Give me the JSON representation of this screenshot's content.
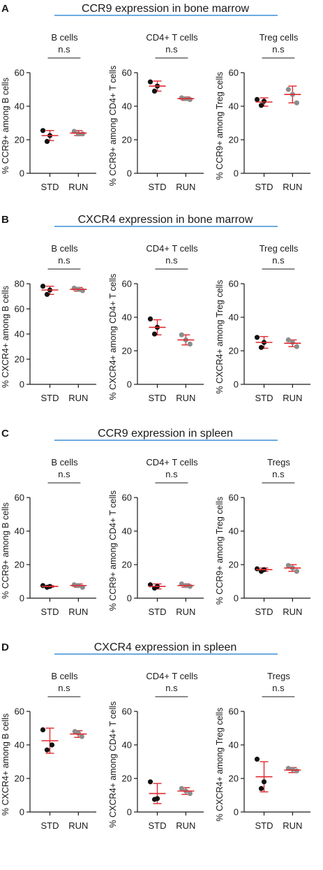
{
  "chart_data": [
    {
      "panel": "A",
      "title": "CCR9 expression in bone marrow",
      "type": "scatter",
      "subplots": [
        {
          "title": "B cells",
          "ylabel": "% CCR9+ among B cells",
          "ylim": [
            0,
            60
          ],
          "yticks": [
            "0",
            "20",
            "40",
            "60"
          ],
          "categories": [
            "STD",
            "RUN"
          ],
          "significance": "n.s",
          "groups": [
            {
              "name": "STD",
              "points": [
                25.5,
                22.5,
                19.0
              ],
              "mean": 22.5,
              "sd_low": 19.5,
              "sd_high": 25.5
            },
            {
              "name": "RUN",
              "points": [
                25.0,
                23.5,
                23.5
              ],
              "mean": 24.0,
              "sd_low": 22.5,
              "sd_high": 25.5
            }
          ]
        },
        {
          "title": "CD4+ T cells",
          "ylabel": "% CCR9+ among CD4+ T cells",
          "ylim": [
            0,
            60
          ],
          "yticks": [
            "0",
            "20",
            "40",
            "60"
          ],
          "categories": [
            "STD",
            "RUN"
          ],
          "significance": "n.s",
          "groups": [
            {
              "name": "STD",
              "points": [
                54.5,
                52.0,
                49.0
              ],
              "mean": 52.0,
              "sd_low": 49.0,
              "sd_high": 55.0
            },
            {
              "name": "RUN",
              "points": [
                45.0,
                44.5,
                44.0
              ],
              "mean": 44.5,
              "sd_low": 43.5,
              "sd_high": 45.5
            }
          ]
        },
        {
          "title": "Treg cells",
          "ylabel": "% CCR9+ among Treg cells",
          "ylim": [
            0,
            60
          ],
          "yticks": [
            "0",
            "20",
            "40",
            "60"
          ],
          "categories": [
            "STD",
            "RUN"
          ],
          "significance": "n.s",
          "groups": [
            {
              "name": "STD",
              "points": [
                44.0,
                43.0,
                40.5
              ],
              "mean": 42.5,
              "sd_low": 40.0,
              "sd_high": 45.0
            },
            {
              "name": "RUN",
              "points": [
                50.0,
                47.0,
                42.0
              ],
              "mean": 47.0,
              "sd_low": 42.0,
              "sd_high": 52.0
            }
          ]
        }
      ]
    },
    {
      "panel": "B",
      "title": "CXCR4 expression in bone marrow",
      "type": "scatter",
      "subplots": [
        {
          "title": "B cells",
          "ylabel": "% CXCR4+ among B cells",
          "ylim": [
            0,
            80
          ],
          "yticks": [
            "0",
            "20",
            "40",
            "60",
            "80"
          ],
          "categories": [
            "STD",
            "RUN"
          ],
          "significance": "n.s",
          "groups": [
            {
              "name": "STD",
              "points": [
                78.0,
                75.0,
                71.5
              ],
              "mean": 75.0,
              "sd_low": 71.5,
              "sd_high": 78.0
            },
            {
              "name": "RUN",
              "points": [
                76.5,
                75.5,
                74.5
              ],
              "mean": 75.5,
              "sd_low": 74.0,
              "sd_high": 77.0
            }
          ]
        },
        {
          "title": "CD4+ T cells",
          "ylabel": "% CXCR4+ among CD4+ T cells",
          "ylim": [
            0,
            60
          ],
          "yticks": [
            "0",
            "20",
            "40",
            "60"
          ],
          "categories": [
            "STD",
            "RUN"
          ],
          "significance": "n.s",
          "groups": [
            {
              "name": "STD",
              "points": [
                39.0,
                34.0,
                30.0
              ],
              "mean": 34.0,
              "sd_low": 29.5,
              "sd_high": 38.5
            },
            {
              "name": "RUN",
              "points": [
                29.5,
                26.5,
                24.0
              ],
              "mean": 26.5,
              "sd_low": 23.5,
              "sd_high": 29.5
            }
          ]
        },
        {
          "title": "Treg cells",
          "ylabel": "% CXCR4+ among Treg cells",
          "ylim": [
            0,
            60
          ],
          "yticks": [
            "0",
            "20",
            "40",
            "60"
          ],
          "categories": [
            "STD",
            "RUN"
          ],
          "significance": "n.s",
          "groups": [
            {
              "name": "STD",
              "points": [
                28.0,
                25.0,
                22.0
              ],
              "mean": 25.0,
              "sd_low": 21.5,
              "sd_high": 28.5
            },
            {
              "name": "RUN",
              "points": [
                26.5,
                25.0,
                22.5
              ],
              "mean": 24.5,
              "sd_low": 22.5,
              "sd_high": 26.5
            }
          ]
        }
      ]
    },
    {
      "panel": "C",
      "title": "CCR9 expression in spleen",
      "type": "scatter",
      "subplots": [
        {
          "title": "B cells",
          "ylabel": "% CCR9+ among B cells",
          "ylim": [
            0,
            60
          ],
          "yticks": [
            "0",
            "20",
            "40",
            "60"
          ],
          "categories": [
            "STD",
            "RUN"
          ],
          "significance": "n.s",
          "groups": [
            {
              "name": "STD",
              "points": [
                7.5,
                7.0,
                6.5
              ],
              "mean": 7.0,
              "sd_low": 6.5,
              "sd_high": 7.5
            },
            {
              "name": "RUN",
              "points": [
                8.0,
                7.5,
                6.5
              ],
              "mean": 7.5,
              "sd_low": 6.5,
              "sd_high": 8.5
            }
          ]
        },
        {
          "title": "CD4+ T cells",
          "ylabel": "% CCR9+ among CD4+ T cells",
          "ylim": [
            0,
            60
          ],
          "yticks": [
            "0",
            "20",
            "40",
            "60"
          ],
          "categories": [
            "STD",
            "RUN"
          ],
          "significance": "n.s",
          "groups": [
            {
              "name": "STD",
              "points": [
                8.0,
                7.0,
                6.0
              ],
              "mean": 7.0,
              "sd_low": 5.5,
              "sd_high": 8.5
            },
            {
              "name": "RUN",
              "points": [
                8.5,
                7.5,
                7.0
              ],
              "mean": 7.5,
              "sd_low": 6.5,
              "sd_high": 8.5
            }
          ]
        },
        {
          "title": "Tregs",
          "ylabel": "% CCR9+ among Treg cells",
          "ylim": [
            0,
            60
          ],
          "yticks": [
            "0",
            "20",
            "40",
            "60"
          ],
          "categories": [
            "STD",
            "RUN"
          ],
          "significance": "n.s",
          "groups": [
            {
              "name": "STD",
              "points": [
                17.5,
                17.0,
                16.0
              ],
              "mean": 17.0,
              "sd_low": 16.0,
              "sd_high": 18.0
            },
            {
              "name": "RUN",
              "points": [
                19.5,
                18.0,
                16.0
              ],
              "mean": 18.0,
              "sd_low": 16.0,
              "sd_high": 20.0
            }
          ]
        }
      ]
    },
    {
      "panel": "D",
      "title": "CXCR4 expression in spleen",
      "type": "scatter",
      "subplots": [
        {
          "title": "B cells",
          "ylabel": "% CXCR4+ among B cells",
          "ylim": [
            0,
            60
          ],
          "yticks": [
            "0",
            "20",
            "40",
            "60"
          ],
          "categories": [
            "STD",
            "RUN"
          ],
          "significance": "n.s",
          "groups": [
            {
              "name": "STD",
              "points": [
                49.0,
                40.0,
                37.0
              ],
              "mean": 42.5,
              "sd_low": 35.0,
              "sd_high": 50.0
            },
            {
              "name": "RUN",
              "points": [
                48.0,
                47.0,
                45.0
              ],
              "mean": 46.5,
              "sd_low": 44.5,
              "sd_high": 48.5
            }
          ]
        },
        {
          "title": "CD4+ T cells",
          "ylabel": "% CXCR4+ among CD4+ T cells",
          "ylim": [
            0,
            60
          ],
          "yticks": [
            "0",
            "20",
            "40",
            "60"
          ],
          "categories": [
            "STD",
            "RUN"
          ],
          "significance": "n.s",
          "groups": [
            {
              "name": "STD",
              "points": [
                18.0,
                8.0,
                7.5
              ],
              "mean": 11.0,
              "sd_low": 5.0,
              "sd_high": 17.0
            },
            {
              "name": "RUN",
              "points": [
                14.0,
                12.5,
                11.0
              ],
              "mean": 12.5,
              "sd_low": 10.5,
              "sd_high": 14.5
            }
          ]
        },
        {
          "title": "Tregs",
          "ylabel": "% CXCR4+ among Treg cells",
          "ylim": [
            0,
            60
          ],
          "yticks": [
            "0",
            "20",
            "40",
            "60"
          ],
          "categories": [
            "STD",
            "RUN"
          ],
          "significance": "n.s",
          "groups": [
            {
              "name": "STD",
              "points": [
                31.5,
                18.0,
                14.0
              ],
              "mean": 21.0,
              "sd_low": 12.0,
              "sd_high": 30.0
            },
            {
              "name": "RUN",
              "points": [
                26.0,
                25.5,
                24.5
              ],
              "mean": 25.0,
              "sd_low": 23.5,
              "sd_high": 26.5
            }
          ]
        }
      ]
    }
  ],
  "colors": {
    "std_dot": "#111111",
    "run_dot": "#8c8c8c",
    "error_bar": "#e0282e",
    "title_underline": "#3b8fd8",
    "axis": "#1a1a1a"
  }
}
